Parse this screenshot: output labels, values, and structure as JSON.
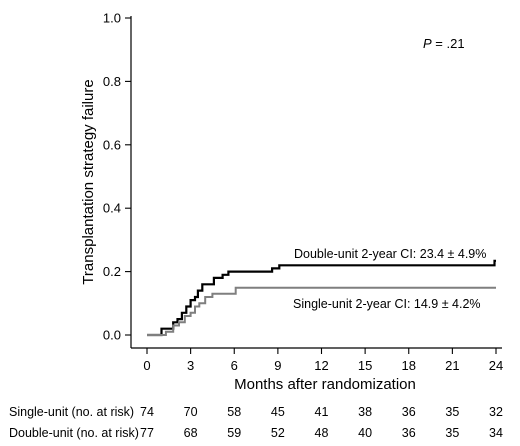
{
  "chart_data": {
    "type": "line",
    "xlabel": "Months after randomization",
    "ylabel": "Transplantation strategy failure",
    "xlim": [
      0,
      24
    ],
    "ylim": [
      0,
      1.0
    ],
    "x_ticks": [
      "0",
      "3",
      "6",
      "9",
      "12",
      "15",
      "18",
      "21",
      "24"
    ],
    "y_ticks": [
      "0.0",
      "0.2",
      "0.4",
      "0.6",
      "0.8",
      "1.0"
    ],
    "grid": false,
    "p_value": {
      "label": "P",
      "text": " = .21"
    },
    "series": [
      {
        "name": "Double-unit",
        "annotation": "Double-unit 2-year CI: 23.4 ± 4.9%",
        "color": "#000000",
        "x": [
          0,
          1.0,
          1.8,
          2.1,
          2.4,
          2.7,
          3.0,
          3.3,
          3.5,
          3.8,
          4.2,
          4.6,
          5.2,
          5.6,
          6.0,
          8.6,
          9.1,
          23.9,
          24.0
        ],
        "y": [
          0,
          0.02,
          0.04,
          0.05,
          0.07,
          0.09,
          0.11,
          0.12,
          0.14,
          0.16,
          0.16,
          0.18,
          0.19,
          0.2,
          0.2,
          0.21,
          0.22,
          0.234,
          0.234
        ]
      },
      {
        "name": "Single-unit",
        "annotation": "Single-unit 2-year CI: 14.9 ± 4.2%",
        "color": "#7f7f7f",
        "x": [
          0,
          1.3,
          1.8,
          2.2,
          2.6,
          3.0,
          3.3,
          3.6,
          4.0,
          4.5,
          5.0,
          6.1,
          24.0
        ],
        "y": [
          0,
          0.01,
          0.03,
          0.04,
          0.06,
          0.07,
          0.09,
          0.1,
          0.12,
          0.13,
          0.13,
          0.149,
          0.149
        ]
      }
    ],
    "risk_table": {
      "times": [
        0,
        3,
        6,
        9,
        12,
        15,
        18,
        21,
        24
      ],
      "rows": [
        {
          "label": "Single-unit (no. at risk)",
          "counts": [
            "74",
            "70",
            "58",
            "45",
            "41",
            "38",
            "36",
            "35",
            "32"
          ]
        },
        {
          "label": "Double-unit (no. at risk)",
          "counts": [
            "77",
            "68",
            "59",
            "52",
            "48",
            "40",
            "36",
            "35",
            "34"
          ]
        }
      ]
    }
  }
}
